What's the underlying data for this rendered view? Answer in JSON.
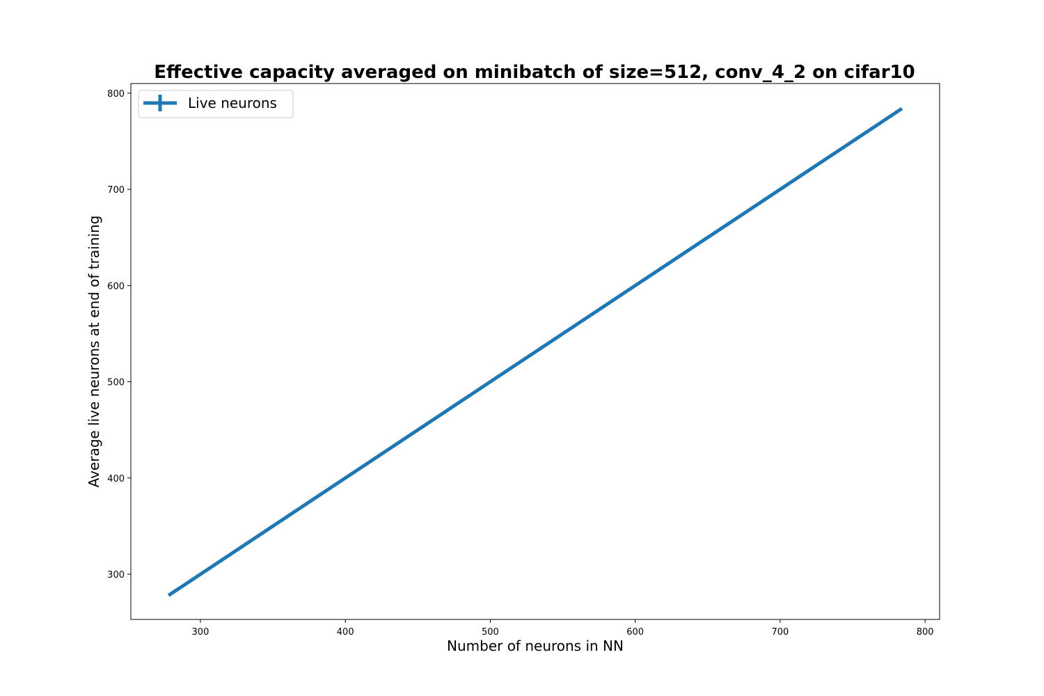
{
  "chart_data": {
    "type": "line",
    "title": "Effective capacity averaged on minibatch of size=512, conv_4_2 on cifar10",
    "xlabel": "Number of neurons in NN",
    "ylabel": "Average live neurons at end of training",
    "xlim": [
      252,
      810
    ],
    "ylim": [
      253,
      810
    ],
    "xticks": [
      300,
      400,
      500,
      600,
      700,
      800
    ],
    "yticks": [
      300,
      400,
      500,
      600,
      700,
      800
    ],
    "grid": false,
    "legend_position": "top-left",
    "series": [
      {
        "name": "Live neurons",
        "color": "#1f77b4",
        "x": [
          278,
          784
        ],
        "y": [
          278,
          784
        ]
      }
    ]
  }
}
